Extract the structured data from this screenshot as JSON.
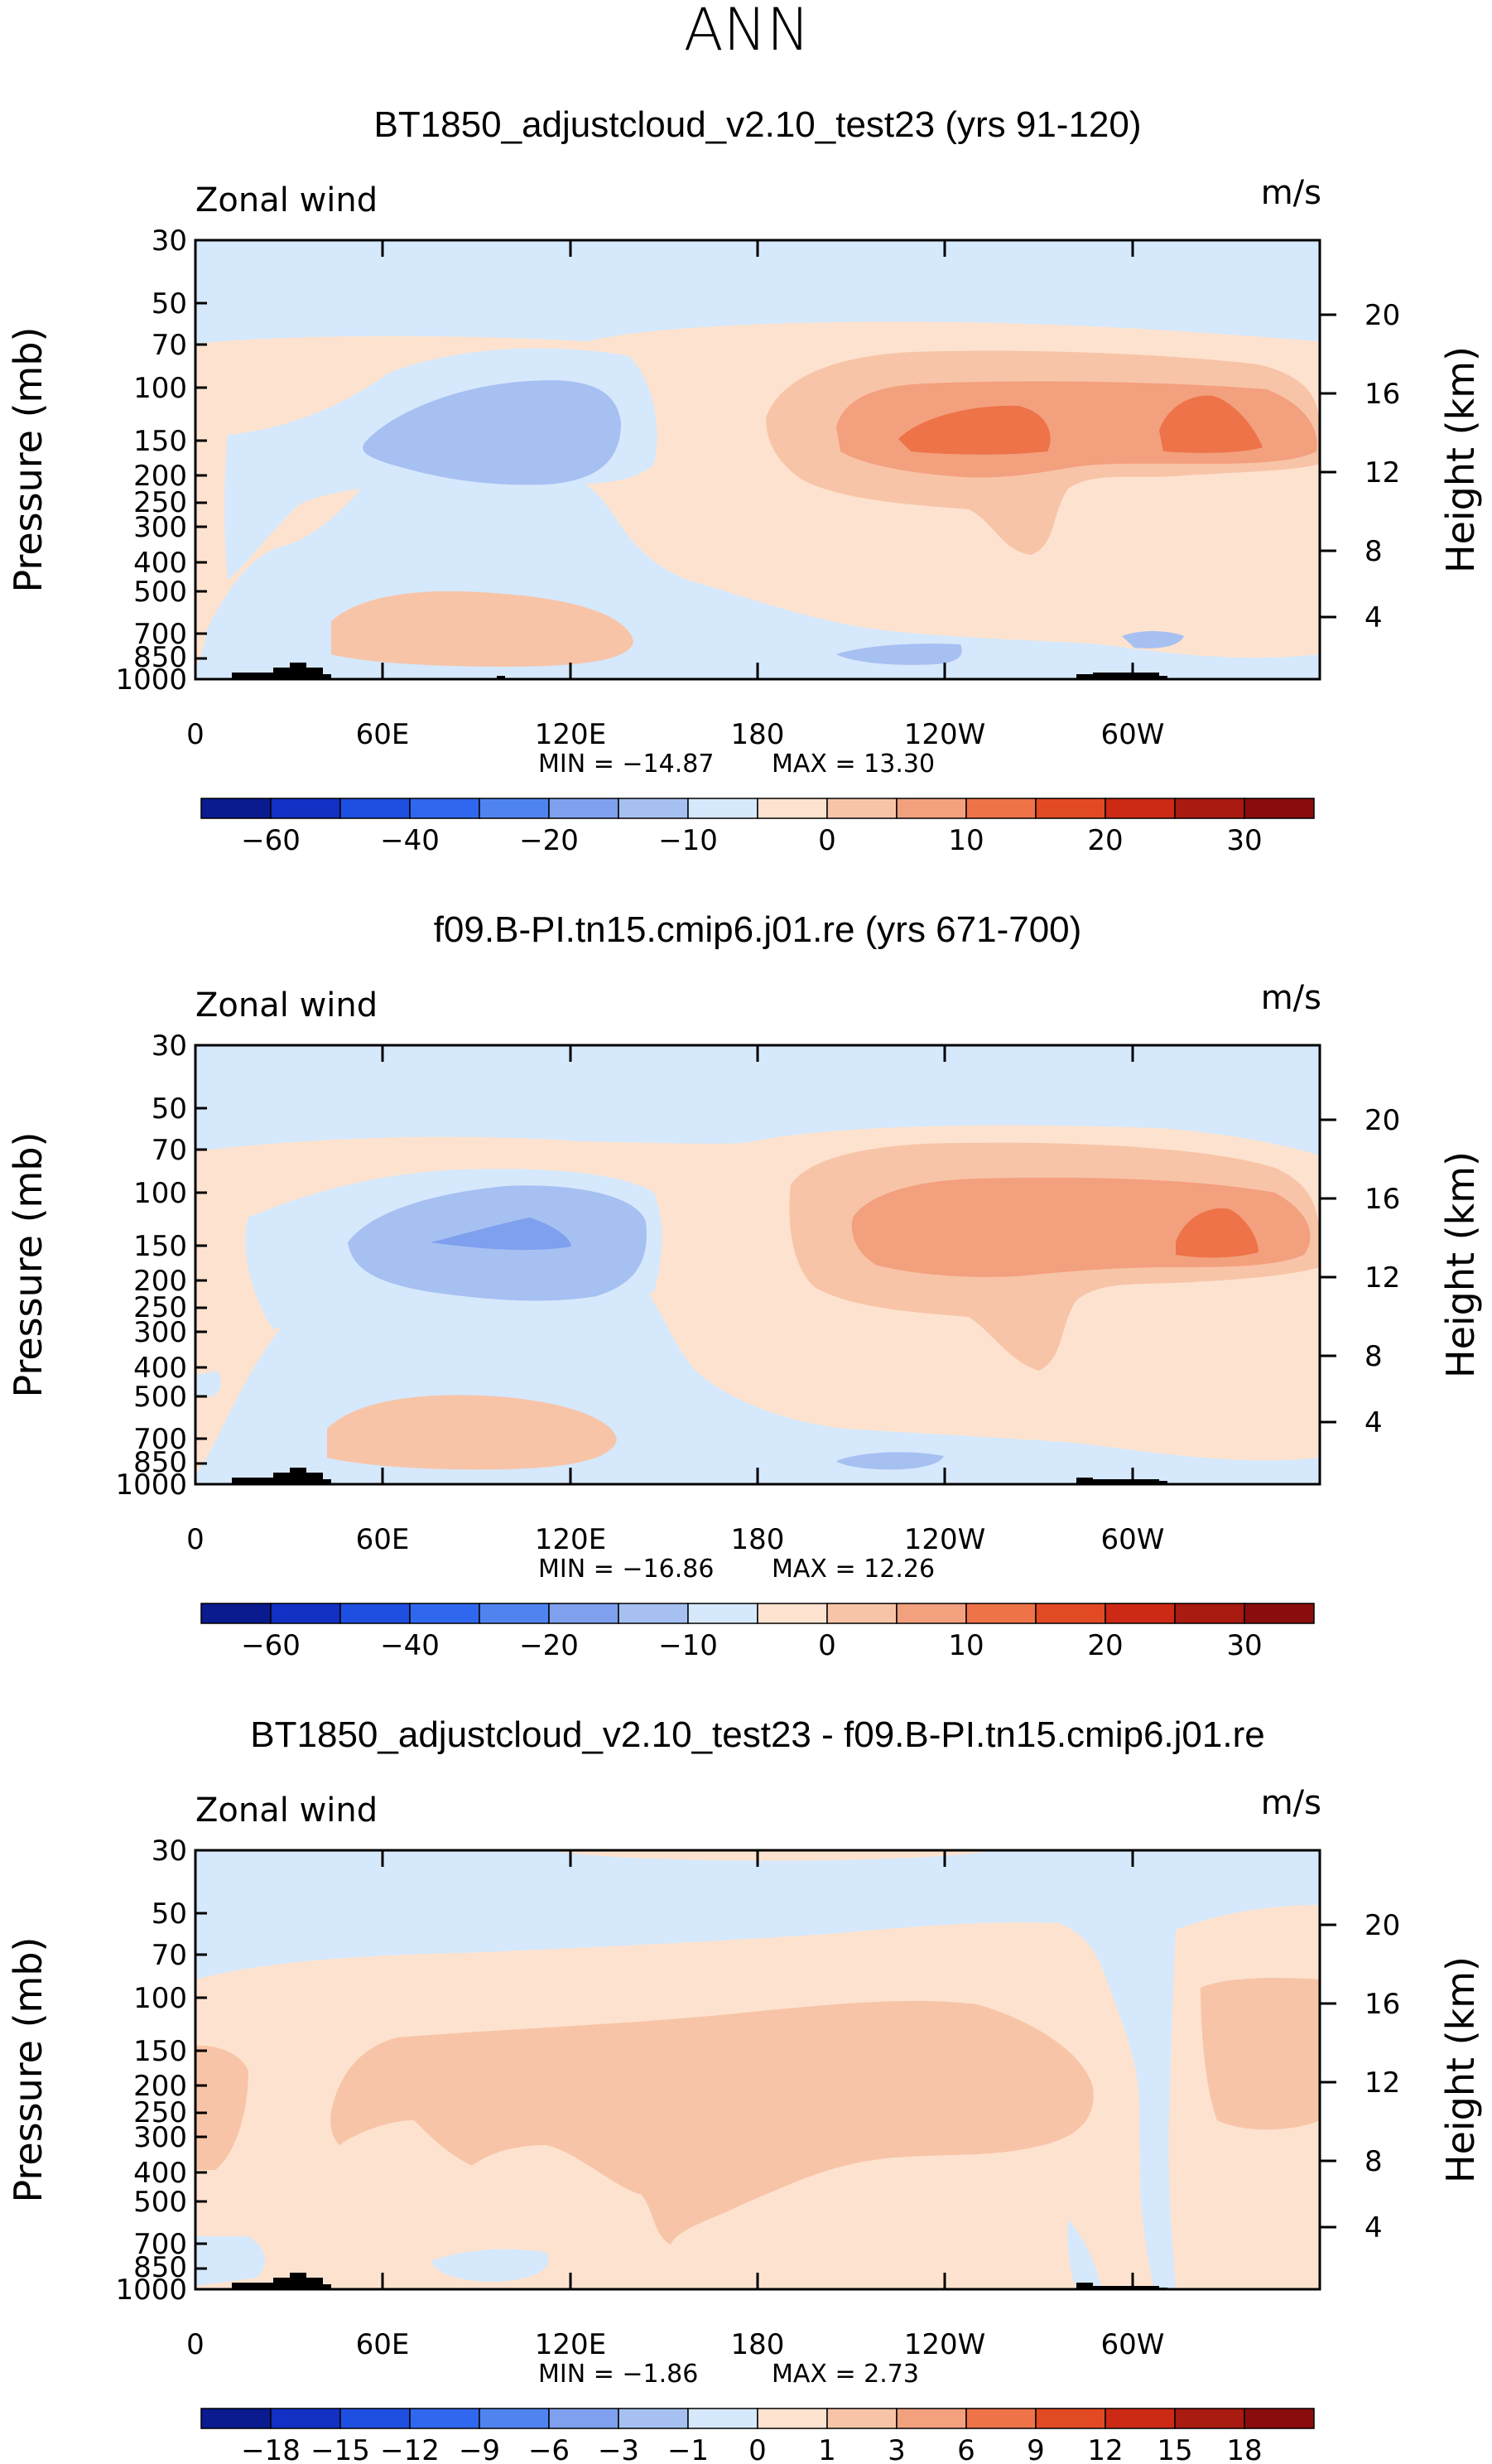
{
  "figure_title": "ANN",
  "chart_data": [
    {
      "type": "heatmap",
      "title": "BT1850_adjustcloud_v2.10_test23 (yrs 91-120)",
      "variable": "Zonal wind",
      "units": "m/s",
      "ylabel": "Pressure (mb)",
      "ylabel_right": "Height (km)",
      "x_ticks": [
        "0",
        "60E",
        "120E",
        "180",
        "120W",
        "60W"
      ],
      "y_ticks": [
        "30",
        "50",
        "70",
        "100",
        "150",
        "200",
        "250",
        "300",
        "400",
        "500",
        "700",
        "850",
        "1000"
      ],
      "y_ticks_right": [
        "20",
        "16",
        "12",
        "8",
        "4"
      ],
      "min_text": "MIN = −14.87",
      "max_text": "MAX = 13.30",
      "min": -14.87,
      "max": 13.3,
      "colorbar_labels": [
        "−60",
        "−40",
        "−20",
        "−10",
        "0",
        "10",
        "20",
        "30"
      ]
    },
    {
      "type": "heatmap",
      "title": "f09.B-PI.tn15.cmip6.j01.re (yrs 671-700)",
      "variable": "Zonal wind",
      "units": "m/s",
      "ylabel": "Pressure (mb)",
      "ylabel_right": "Height (km)",
      "x_ticks": [
        "0",
        "60E",
        "120E",
        "180",
        "120W",
        "60W"
      ],
      "y_ticks": [
        "30",
        "50",
        "70",
        "100",
        "150",
        "200",
        "250",
        "300",
        "400",
        "500",
        "700",
        "850",
        "1000"
      ],
      "y_ticks_right": [
        "20",
        "16",
        "12",
        "8",
        "4"
      ],
      "min_text": "MIN = −16.86",
      "max_text": "MAX = 12.26",
      "min": -16.86,
      "max": 12.26,
      "colorbar_labels": [
        "−60",
        "−40",
        "−20",
        "−10",
        "0",
        "10",
        "20",
        "30"
      ]
    },
    {
      "type": "heatmap",
      "title": "BT1850_adjustcloud_v2.10_test23 - f09.B-PI.tn15.cmip6.j01.re",
      "variable": "Zonal wind",
      "units": "m/s",
      "ylabel": "Pressure (mb)",
      "ylabel_right": "Height (km)",
      "x_ticks": [
        "0",
        "60E",
        "120E",
        "180",
        "120W",
        "60W"
      ],
      "y_ticks": [
        "30",
        "50",
        "70",
        "100",
        "150",
        "200",
        "250",
        "300",
        "400",
        "500",
        "700",
        "850",
        "1000"
      ],
      "y_ticks_right": [
        "20",
        "16",
        "12",
        "8",
        "4"
      ],
      "min_text": "MIN = −1.86",
      "max_text": "MAX = 2.73",
      "min": -1.86,
      "max": 2.73,
      "colorbar_labels": [
        "−18",
        "−15",
        "−12",
        "−9",
        "−6",
        "−3",
        "−1",
        "0",
        "1",
        "3",
        "6",
        "9",
        "12",
        "15",
        "18"
      ]
    }
  ],
  "colors": {
    "blue_dark": "#0a1a8f",
    "blue_light": "#d6e8fb",
    "peach_light": "#fde3cf",
    "peach": "#f8c4a8",
    "salmon": "#f3a07e",
    "orange": "#ee7348",
    "red_dark": "#8a0c0c",
    "blue_mid": "#a7c0f2",
    "blue_deep": "#7fa0ee",
    "topo": "#000000"
  }
}
